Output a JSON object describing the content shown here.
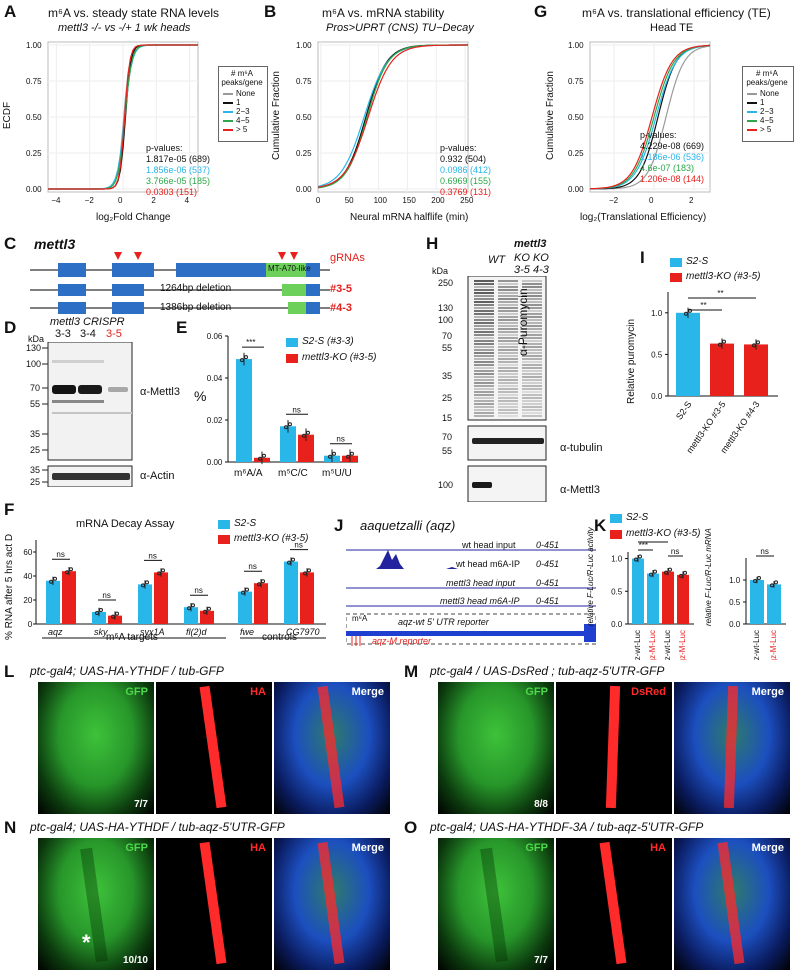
{
  "colors": {
    "cyan": "#29b6e9",
    "red": "#e8211d",
    "green": "#2ea84a",
    "gray": "#9a9a9a",
    "black": "#111111",
    "purple": "#2323a0"
  },
  "panelA": {
    "letter": "A",
    "title": "m⁶A vs. steady state RNA levels",
    "subtitle": "mettl3 -/- vs -/+ 1 wk heads",
    "ylabel": "ECDF",
    "xlabel": "log₂Fold Change",
    "xticks": [
      "−4",
      "−2",
      "0",
      "2",
      "4"
    ],
    "yticks": [
      "0.00",
      "0.25",
      "0.50",
      "0.75",
      "1.00"
    ],
    "pvalues_title": "p-values:",
    "pvalues": [
      "1.817e-05 (689)",
      "1.856e-06 (537)",
      "3.766e-05 (185)",
      "0.0303 (151)"
    ],
    "legend_title": "# m⁶A peaks/gene",
    "legend": [
      "None",
      "1",
      "2−3",
      "4−5",
      "> 5"
    ]
  },
  "panelB": {
    "letter": "B",
    "title": "m⁶A vs. mRNA stability",
    "subtitle": "Pros>UPRT (CNS) TU−Decay",
    "ylabel": "Cumulative Fraction",
    "xlabel": "Neural mRNA halflife (min)",
    "xticks": [
      "0",
      "50",
      "100",
      "150",
      "200",
      "250"
    ],
    "yticks": [
      "0.00",
      "0.25",
      "0.50",
      "0.75",
      "1.00"
    ],
    "pvalues_title": "p-values:",
    "pvalues": [
      "0.932 (504)",
      "0.0986 (412)",
      "0.6969 (155)",
      "0.3769 (131)"
    ]
  },
  "panelG": {
    "letter": "G",
    "title": "m⁶A vs. translational efficiency (TE)",
    "subtitle": "Head TE",
    "ylabel": "Cumulative Fraction",
    "xlabel": "log₂(Translational Efficiency)",
    "xticks": [
      "−2",
      "0",
      "2"
    ],
    "yticks": [
      "0.00",
      "0.25",
      "0.50",
      "0.75",
      "1.00"
    ],
    "pvalues_title": "p-values:",
    "pvalues": [
      "4.229e-08 (669)",
      "1.186e-06 (536)",
      "4.6e-07 (183)",
      "1.206e-08 (144)"
    ],
    "legend_title": "# m⁶A peaks/gene",
    "legend": [
      "None",
      "1",
      "2−3",
      "4−5",
      "> 5"
    ]
  },
  "panelC": {
    "letter": "C",
    "gene": "mettl3",
    "domain": "MT-A70-like",
    "grnas": "gRNAs",
    "del1": "1264bp deletion",
    "del2": "1386bp deletion",
    "allele1": "#3-5",
    "allele2": "#4-3"
  },
  "panelD": {
    "letter": "D",
    "title": "mettl3 CRISPR",
    "kda": "kDa",
    "lanes": [
      "3-3",
      "3-4",
      "3-5"
    ],
    "markers_top": [
      "130",
      "100",
      "70",
      "55",
      "35",
      "25"
    ],
    "markers_bottom": [
      "35",
      "25"
    ],
    "ab1": "α-Mettl3",
    "ab2": "α-Actin"
  },
  "panelE": {
    "letter": "E",
    "ylabel": "%",
    "yticks": [
      "0.00",
      "0.02",
      "0.04",
      "0.06"
    ],
    "groups": [
      "m⁶A/A",
      "m⁵C/C",
      "m⁵U/U"
    ],
    "sig": [
      "***",
      "ns",
      "ns"
    ],
    "legend": [
      "S2-S (#3-3)",
      "mettl3-KO (#3-5)"
    ],
    "chart_data": {
      "type": "bar",
      "categories": [
        "m6A/A",
        "m5C/C",
        "m5U/U"
      ],
      "series": [
        {
          "name": "S2-S (#3-3)",
          "values": [
            0.049,
            0.017,
            0.003
          ]
        },
        {
          "name": "mettl3-KO (#3-5)",
          "values": [
            0.002,
            0.013,
            0.003
          ]
        }
      ],
      "ylim": [
        0,
        0.06
      ]
    }
  },
  "panelH": {
    "letter": "H",
    "kda": "kDa",
    "lanes": [
      "WT",
      "mettl3 KO 3-5",
      "mettl3 KO 4-3"
    ],
    "lane_head": "mettl3",
    "lane_ko": "KO KO",
    "lane_ids": "3-5 4-3",
    "lane_wt": "WT",
    "markers": [
      "250",
      "130",
      "100",
      "70",
      "55",
      "35",
      "25",
      "15"
    ],
    "markers2": [
      "70",
      "55"
    ],
    "markers3": [
      "100"
    ],
    "ab1": "α-Puromycin",
    "ab2": "α-tubulin",
    "ab3": "α-Mettl3"
  },
  "panelI": {
    "letter": "I",
    "ylabel": "Relative puromycin",
    "yticks": [
      "0.0",
      "0.5",
      "1.0"
    ],
    "categories": [
      "S2-S",
      "mettl3-KO #3-5",
      "mettl3-KO #4-3"
    ],
    "sig": [
      "**",
      "**"
    ],
    "legend": [
      "S2-S",
      "mettl3-KO (#3-5)"
    ],
    "chart_data": {
      "type": "bar",
      "categories": [
        "S2-S",
        "mettl3-KO #3-5",
        "mettl3-KO #4-3"
      ],
      "values": [
        1.0,
        0.63,
        0.62
      ],
      "ylim": [
        0,
        1.25
      ]
    }
  },
  "panelF": {
    "letter": "F",
    "title": "mRNA Decay Assay",
    "ylabel": "% RNA after 5 hrs act D",
    "yticks": [
      "0",
      "20",
      "40",
      "60"
    ],
    "categories": [
      "aqz",
      "sky",
      "syx1A",
      "fl(2)d",
      "fwe",
      "CG7970"
    ],
    "sig": [
      "ns",
      "ns",
      "ns",
      "ns",
      "ns",
      "ns"
    ],
    "group1": "m⁶A targets",
    "group2": "controls",
    "legend": [
      "S2-S",
      "mettl3-KO (#3-5)"
    ],
    "chart_data": {
      "type": "bar",
      "categories": [
        "aqz",
        "sky",
        "syx1A",
        "fl(2)d",
        "fwe",
        "CG7970"
      ],
      "series": [
        {
          "name": "S2-S",
          "values": [
            36,
            10,
            33,
            14,
            27,
            52
          ]
        },
        {
          "name": "mettl3-KO (#3-5)",
          "values": [
            44,
            7,
            43,
            11,
            34,
            43
          ]
        }
      ],
      "ylim": [
        0,
        70
      ]
    }
  },
  "panelJ": {
    "letter": "J",
    "title": "aaquetzalli (aqz)",
    "tracks": [
      "wt head input",
      "wt head m6A-IP",
      "mettl3 head input",
      "mettl3 head m6A-IP"
    ],
    "range": "0-451",
    "m6a": "m⁶A",
    "reporter_wt": "aqz-wt 5' UTR reporter",
    "reporter_m": "aqz-M reporter"
  },
  "panelK": {
    "letter": "K",
    "legend": [
      "S2-S",
      "mettl3-KO (#3-5)"
    ],
    "ylabel1": "relative F-Luc/R-Luc activity",
    "ylabel2": "relative F-Luc/R-Luc mRNA",
    "yticks": [
      "0.0",
      "0.5",
      "1.0"
    ],
    "cats1": [
      "aqz-wt-Luc",
      "aqz-M-Luc",
      "aqz-wt-Luc",
      "aqz-M-Luc"
    ],
    "cats2": [
      "aqz-wt-Luc",
      "aqz-M-Luc"
    ],
    "sig1": [
      "***",
      "**",
      "ns"
    ],
    "sig2": [
      "ns"
    ],
    "chart_data": [
      {
        "type": "bar",
        "categories": [
          "aqz-wt-Luc",
          "aqz-M-Luc",
          "aqz-wt-Luc",
          "aqz-M-Luc"
        ],
        "values": [
          1.0,
          0.77,
          0.8,
          0.75
        ],
        "ylim": [
          0,
          1.1
        ]
      },
      {
        "type": "bar",
        "categories": [
          "aqz-wt-Luc",
          "aqz-M-Luc"
        ],
        "values": [
          1.0,
          0.9
        ],
        "ylim": [
          0,
          1.5
        ]
      }
    ]
  },
  "panelL": {
    "letter": "L",
    "title": "ptc-gal4; UAS-HA-YTHDF / tub-GFP",
    "ch": [
      "GFP",
      "HA",
      "Merge"
    ],
    "count": "7/7"
  },
  "panelM": {
    "letter": "M",
    "title": "ptc-gal4 / UAS-DsRed ; tub-aqz-5'UTR-GFP",
    "ch": [
      "GFP",
      "DsRed",
      "Merge"
    ],
    "count": "8/8"
  },
  "panelN": {
    "letter": "N",
    "title": "ptc-gal4; UAS-HA-YTHDF / tub-aqz-5'UTR-GFP",
    "ch": [
      "GFP",
      "HA",
      "Merge"
    ],
    "count": "10/10",
    "star": "*"
  },
  "panelO": {
    "letter": "O",
    "title": "ptc-gal4; UAS-HA-YTHDF-3A / tub-aqz-5'UTR-GFP",
    "ch": [
      "GFP",
      "HA",
      "Merge"
    ],
    "count": "7/7"
  }
}
